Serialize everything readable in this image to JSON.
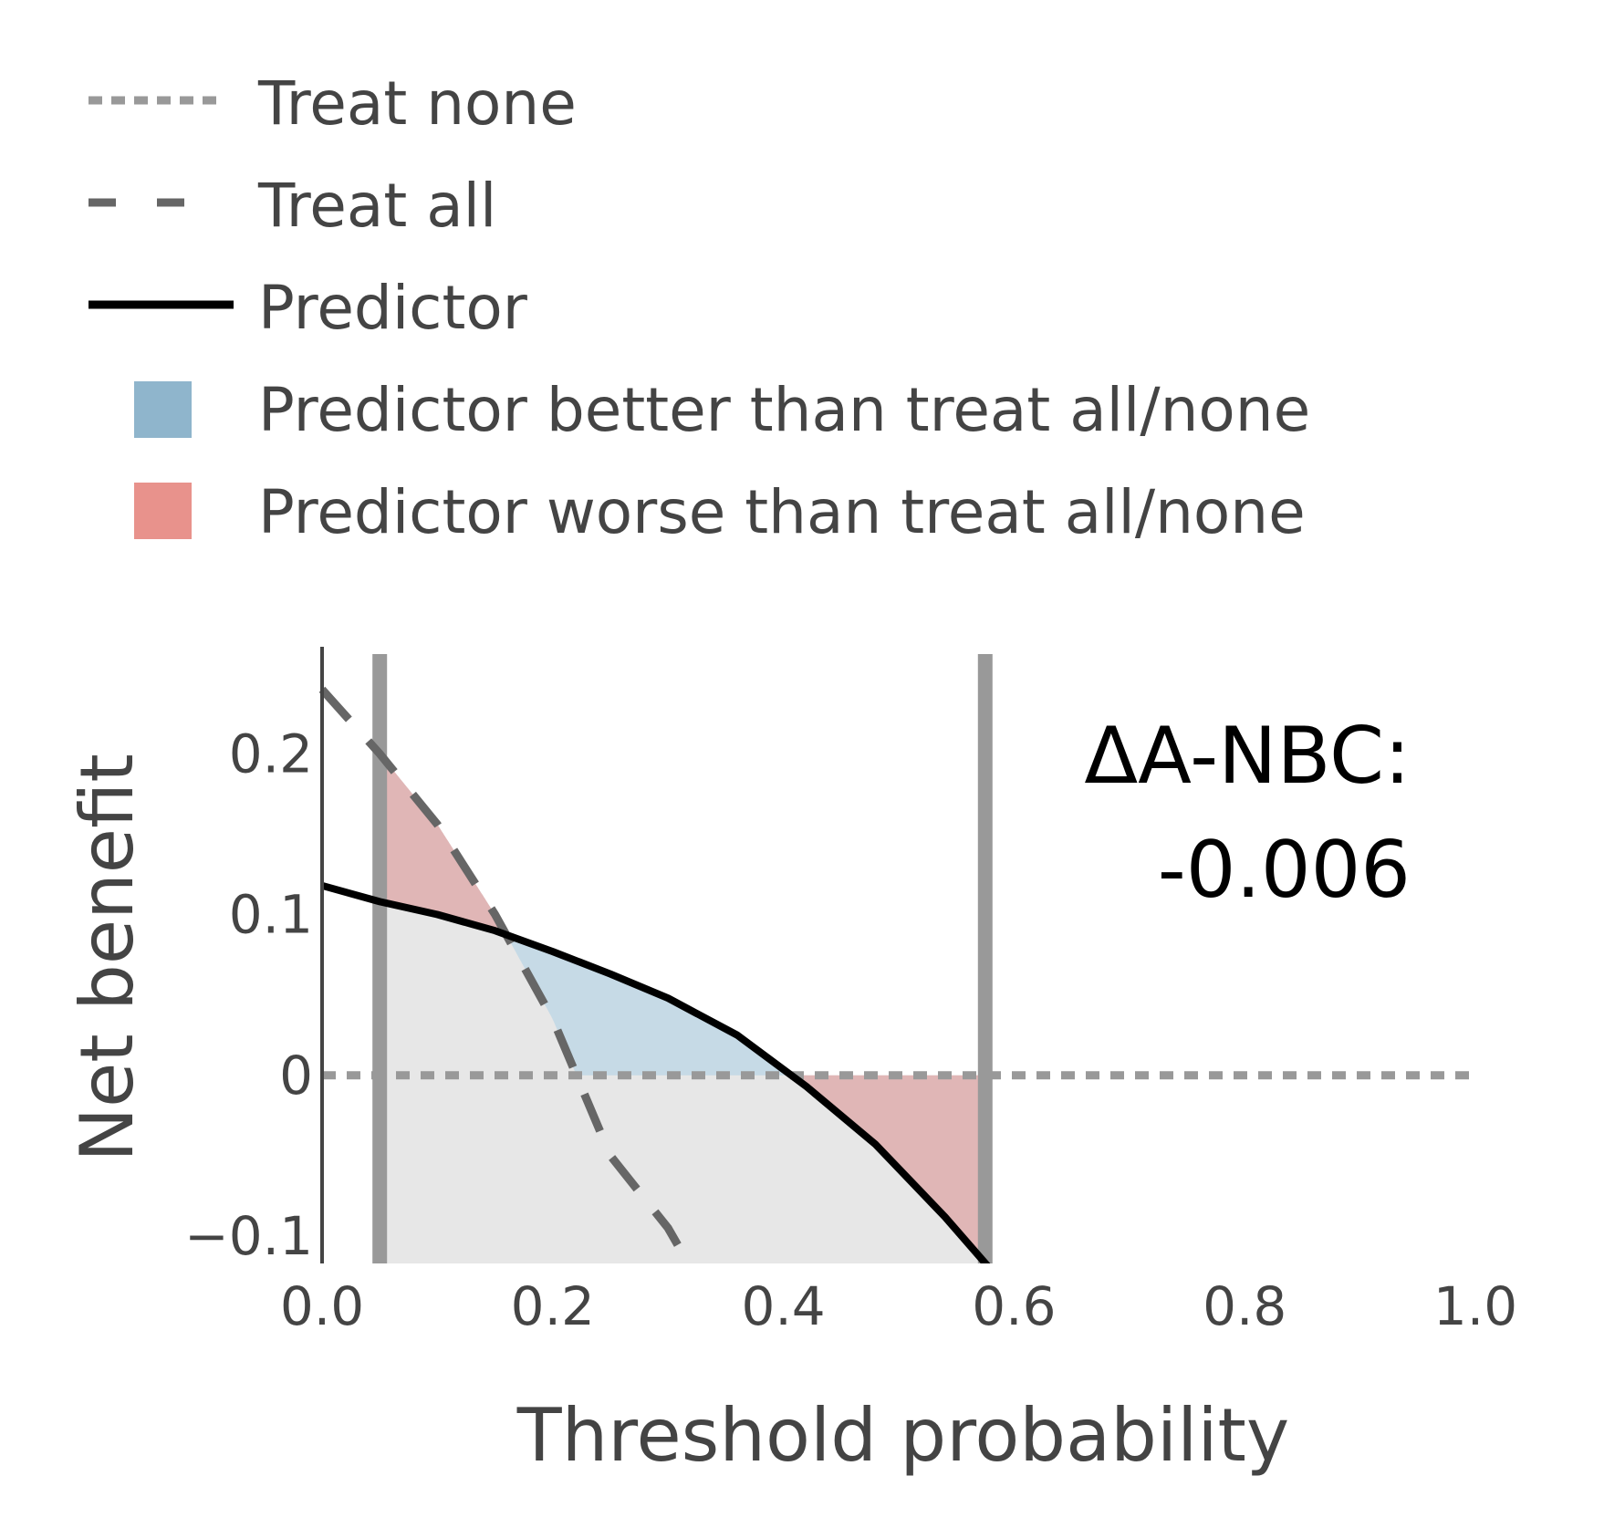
{
  "chart_data": {
    "type": "line",
    "title": "",
    "xlabel": "Threshold probability",
    "ylabel": "Net benefit",
    "xlim": [
      0,
      1
    ],
    "ylim": [
      -0.117,
      0.262
    ],
    "x_ticks": [
      {
        "value": 0.0,
        "label": "0.0"
      },
      {
        "value": 0.2,
        "label": "0.2"
      },
      {
        "value": 0.4,
        "label": "0.4"
      },
      {
        "value": 0.6,
        "label": "0.6"
      },
      {
        "value": 0.8,
        "label": "0.8"
      },
      {
        "value": 1.0,
        "label": "1.0"
      }
    ],
    "y_ticks": [
      {
        "value": 0.2,
        "label": "0.2"
      },
      {
        "value": 0.1,
        "label": "0.1"
      },
      {
        "value": 0,
        "label": "0"
      },
      {
        "value": -0.1,
        "label": "−0.1"
      }
    ],
    "grid": false,
    "legend_position": "top-left",
    "series": [
      {
        "name": "Treat none",
        "style": "dotted",
        "color": "#999999",
        "x": [
          0,
          1
        ],
        "y": [
          0,
          0
        ]
      },
      {
        "name": "Treat all",
        "style": "dashed",
        "color": "#666666",
        "x": [
          0,
          0.05,
          0.1,
          0.15,
          0.2,
          0.25,
          0.3,
          0.32
        ],
        "y": [
          0.24,
          0.2,
          0.156,
          0.1,
          0.035,
          -0.05,
          -0.095,
          -0.12
        ]
      },
      {
        "name": "Predictor",
        "style": "solid",
        "color": "#000000",
        "x": [
          0,
          0.05,
          0.1,
          0.15,
          0.2,
          0.25,
          0.3,
          0.36,
          0.42,
          0.48,
          0.54,
          0.585
        ],
        "y": [
          0.118,
          0.108,
          0.1,
          0.09,
          0.077,
          0.063,
          0.048,
          0.025,
          -0.007,
          -0.043,
          -0.088,
          -0.125
        ]
      }
    ],
    "legend_patches": [
      {
        "name": "Predictor better than treat all/none",
        "color": "#8fb5cc"
      },
      {
        "name": "Predictor worse than treat all/none",
        "color": "#e8928c"
      }
    ],
    "threshold_lines": [
      0.05,
      0.575
    ],
    "regions": {
      "base_fill_color": "#e7e7e7",
      "better_fill_color": "#c6dae6",
      "worse_fill_color": "#e0b6b6"
    },
    "annotation": {
      "label": "ΔA-NBC:",
      "value": "-0.006"
    }
  }
}
